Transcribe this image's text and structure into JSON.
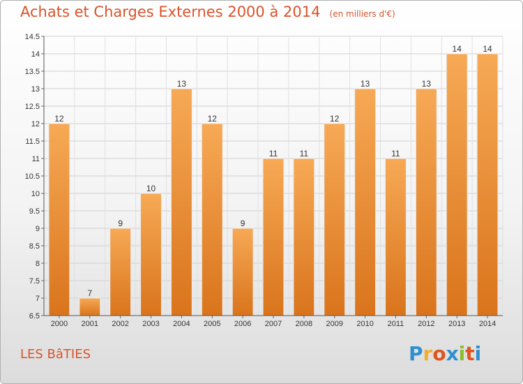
{
  "header": {
    "title": "Achats et Charges Externes 2000 à 2014",
    "unit": "(en milliers d'€)"
  },
  "footer": {
    "commune": "LES BâTIES",
    "brand_letters": [
      "P",
      "r",
      "o",
      "x",
      "i",
      "t",
      "i"
    ],
    "brand_colors": [
      "#2f8fd1",
      "#f2b02a",
      "#e0541f",
      "#2f8fd1",
      "#8cbd2e",
      "#e0541f",
      "#2f8fd1"
    ]
  },
  "colors": {
    "bar_light": "#f7a955",
    "bar_dark": "#d9741c",
    "accent": "#d9532b"
  },
  "chart_data": {
    "type": "bar",
    "categories": [
      "2000",
      "2001",
      "2002",
      "2003",
      "2004",
      "2005",
      "2006",
      "2007",
      "2008",
      "2009",
      "2010",
      "2011",
      "2012",
      "2013",
      "2014"
    ],
    "values": [
      12,
      7,
      9,
      10,
      13,
      12,
      9,
      11,
      11,
      12,
      13,
      11,
      13,
      14,
      14
    ],
    "ylim": [
      6.5,
      14.5
    ],
    "yticks": [
      6.5,
      7,
      7.5,
      8,
      8.5,
      9,
      9.5,
      10,
      10.5,
      11,
      11.5,
      12,
      12.5,
      13,
      13.5,
      14,
      14.5
    ],
    "ytick_labels": [
      "6.5",
      "7",
      "7.5",
      "8",
      "8.5",
      "9",
      "9.5",
      "10",
      "10.5",
      "11",
      "11.5",
      "12",
      "12.5",
      "13",
      "13.5",
      "14",
      "14.5"
    ],
    "grid": true
  }
}
